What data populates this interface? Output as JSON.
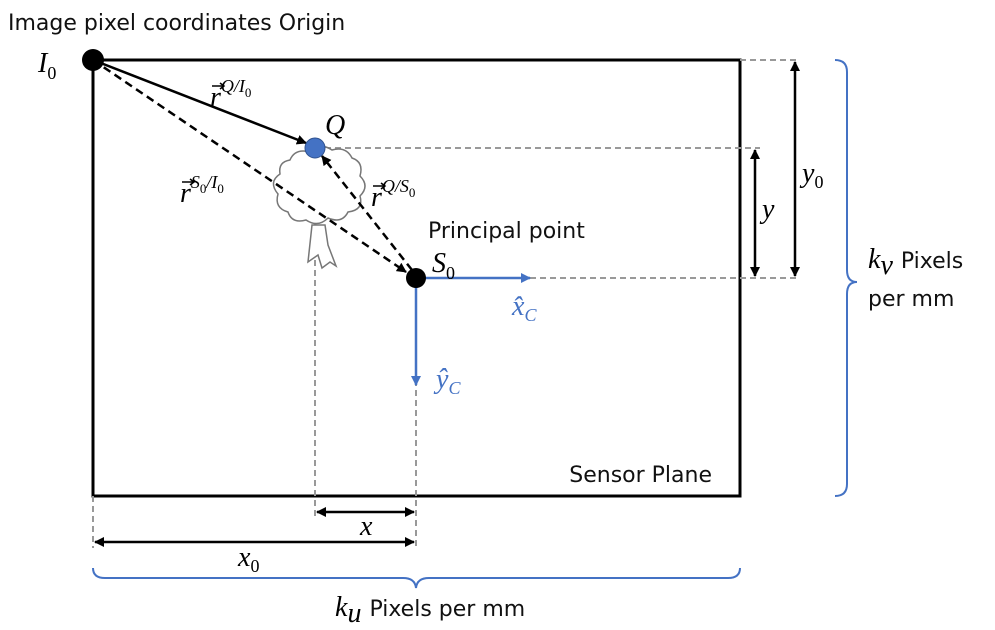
{
  "title": "Image pixel coordinates Origin",
  "points": {
    "origin": {
      "base": "I",
      "sub": "0"
    },
    "q": {
      "base": "Q"
    },
    "principal": {
      "caption": "Principal point",
      "base": "S",
      "sub": "0"
    }
  },
  "vectors": [
    {
      "base": "r",
      "superscript": [
        {
          "text": "Q/I",
          "sub": "0"
        }
      ]
    },
    {
      "base": "r",
      "superscript": [
        {
          "text": "S",
          "sub": "0"
        },
        {
          "text": "/I",
          "sub": "0"
        }
      ]
    },
    {
      "base": "r",
      "superscript": [
        {
          "text": "Q/S",
          "sub": "0"
        }
      ]
    }
  ],
  "camera_axes": [
    {
      "base": "x̂",
      "sub": "C"
    },
    {
      "base": "ŷ",
      "sub": "C"
    }
  ],
  "dimensions": {
    "x": {
      "base": "x"
    },
    "x0": {
      "base": "x",
      "sub": "0"
    },
    "y": {
      "base": "y"
    },
    "y0": {
      "base": "y",
      "sub": "0"
    }
  },
  "scales": {
    "ku": {
      "base": "k",
      "sub": "u",
      "lines": [
        "Pixels per mm"
      ]
    },
    "kv": {
      "base": "k",
      "sub": "v",
      "lines": [
        "Pixels",
        "per mm"
      ]
    }
  },
  "sensor_plane": "Sensor Plane"
}
